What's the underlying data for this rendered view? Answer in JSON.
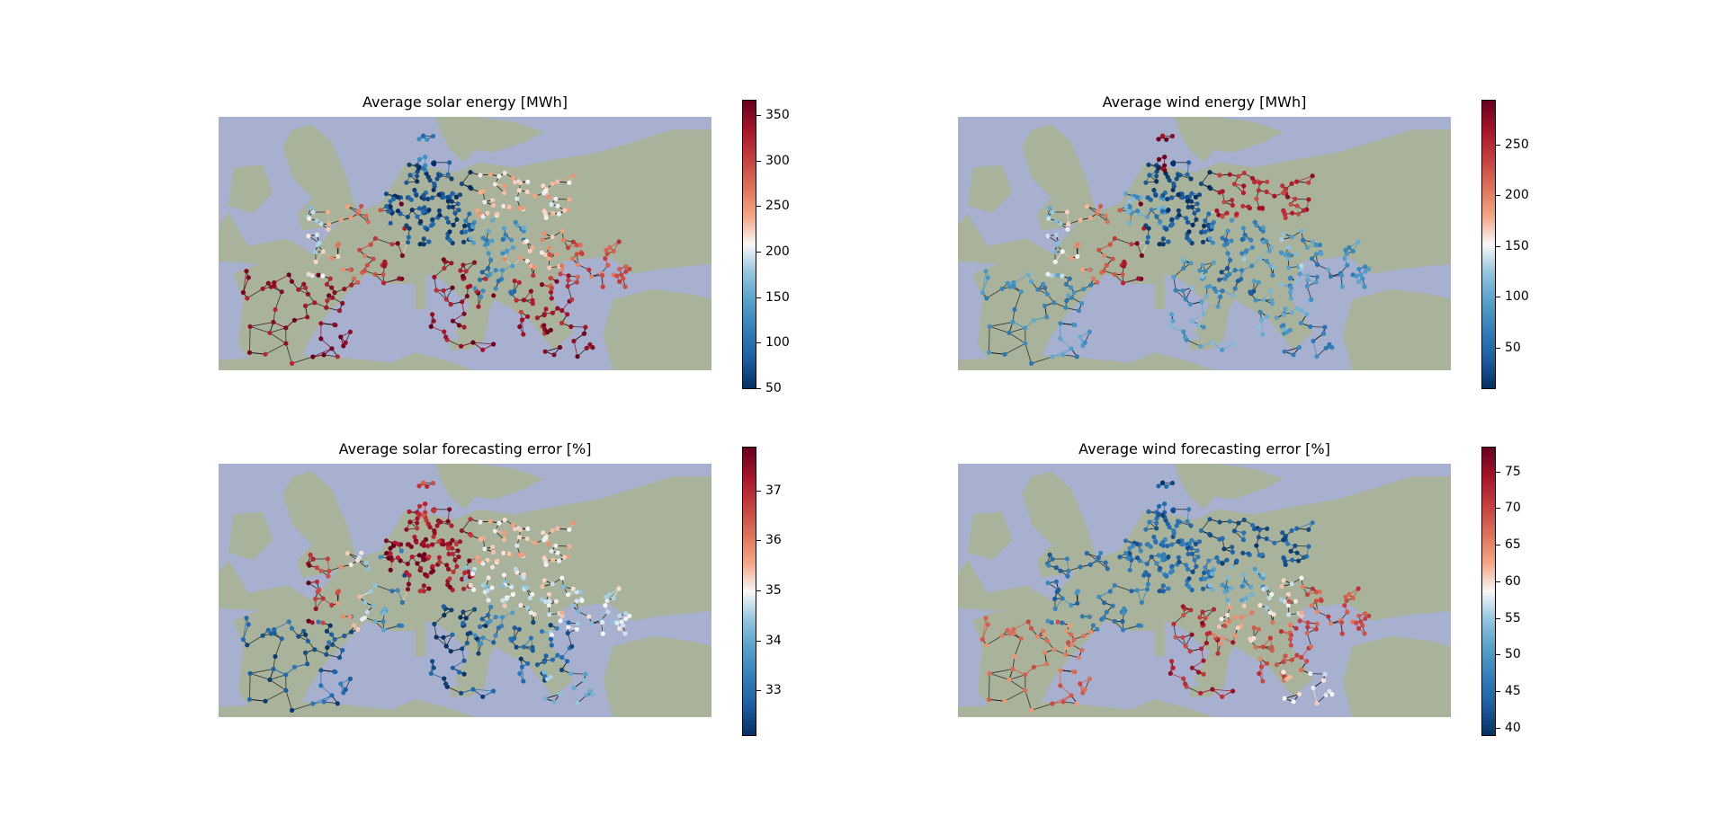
{
  "figure": {
    "panels": [
      {
        "id": "solar-energy",
        "title": "Average solar energy [MWh]",
        "colorbar": {
          "min": 50,
          "max": 368,
          "ticks": [
            "50",
            "100",
            "150",
            "200",
            "250",
            "300",
            "350"
          ],
          "tick_values": [
            50,
            100,
            150,
            200,
            250,
            300,
            350
          ]
        },
        "colormap": "RdBu_r",
        "pattern": "solar_energy"
      },
      {
        "id": "wind-energy",
        "title": "Average wind energy [MWh]",
        "colorbar": {
          "min": 10,
          "max": 295,
          "ticks": [
            "50",
            "100",
            "150",
            "200",
            "250"
          ],
          "tick_values": [
            50,
            100,
            150,
            200,
            250
          ]
        },
        "colormap": "RdBu_r",
        "pattern": "wind_energy"
      },
      {
        "id": "solar-error",
        "title": "Average solar forecasting error [%]",
        "colorbar": {
          "min": 32.1,
          "max": 37.9,
          "ticks": [
            "33",
            "34",
            "35",
            "36",
            "37"
          ],
          "tick_values": [
            33,
            34,
            35,
            36,
            37
          ]
        },
        "colormap": "RdBu_r",
        "pattern": "solar_error"
      },
      {
        "id": "wind-error",
        "title": "Average wind forecasting error [%]",
        "colorbar": {
          "min": 39,
          "max": 78.5,
          "ticks": [
            "40",
            "45",
            "50",
            "55",
            "60",
            "65",
            "70",
            "75"
          ],
          "tick_values": [
            40,
            45,
            50,
            55,
            60,
            65,
            70,
            75
          ]
        },
        "colormap": "RdBu_r",
        "pattern": "wind_error"
      }
    ],
    "colors": {
      "sea": "#a7b0cf",
      "land": "#a9b29a",
      "land_dark": "#98a289",
      "edge": "#1a1a1a",
      "cmap_low": "#053061",
      "cmap_mid": "#f7f7f7",
      "cmap_high": "#67001f"
    }
  }
}
